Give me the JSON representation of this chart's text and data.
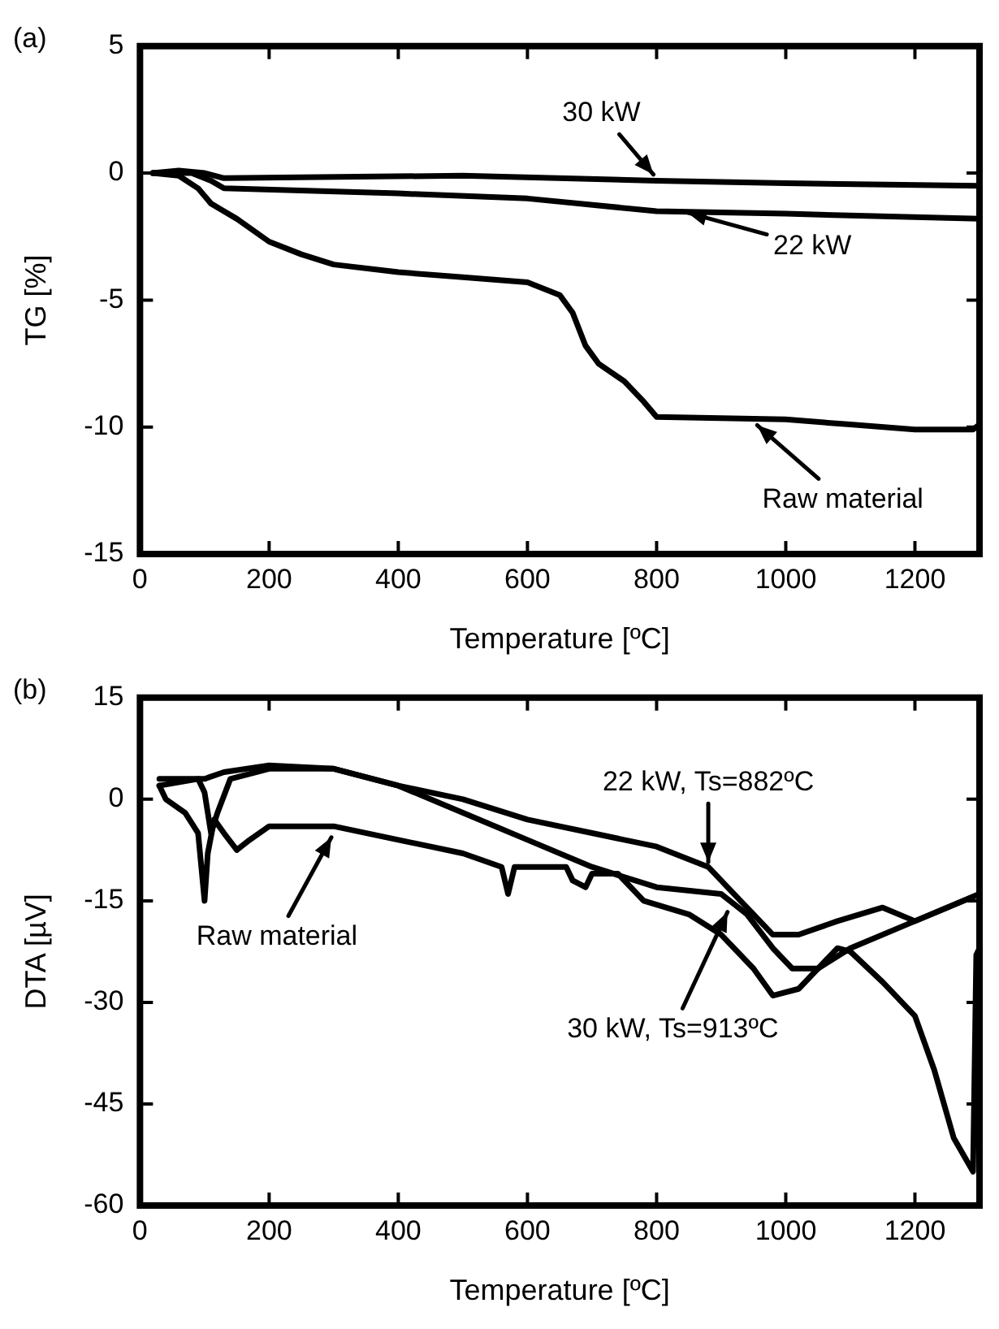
{
  "chart_data": [
    {
      "type": "line",
      "title": "(a)",
      "xlabel": "Temperature [ºC]",
      "ylabel": "TG [%]",
      "xlim": [
        0,
        1300
      ],
      "xticks": [
        0,
        200,
        400,
        600,
        800,
        1000,
        1200
      ],
      "ylim": [
        -15,
        5
      ],
      "yticks": [
        -15,
        -10,
        -5,
        0,
        5
      ],
      "grid": false,
      "legend": false,
      "marker": "none",
      "line_style": "solid",
      "series": [
        {
          "color": "#000000",
          "x": [
            20,
            60,
            100,
            130,
            500,
            800,
            1000,
            1300
          ],
          "values": [
            0,
            0.1,
            0,
            -0.2,
            -0.1,
            -0.3,
            -0.4,
            -0.5
          ]
        },
        {
          "color": "#000000",
          "x": [
            20,
            80,
            110,
            130,
            400,
            600,
            800,
            1000,
            1300
          ],
          "values": [
            0,
            0,
            -0.3,
            -0.6,
            -0.8,
            -1.0,
            -1.5,
            -1.6,
            -1.8
          ]
        },
        {
          "color": "#000000",
          "x": [
            20,
            60,
            90,
            110,
            150,
            200,
            250,
            300,
            400,
            500,
            600,
            650,
            670,
            690,
            710,
            750,
            780,
            800,
            1000,
            1100,
            1200,
            1290,
            1300
          ],
          "values": [
            0,
            -0.1,
            -0.6,
            -1.2,
            -1.8,
            -2.7,
            -3.2,
            -3.6,
            -3.9,
            -4.1,
            -4.3,
            -4.8,
            -5.5,
            -6.8,
            -7.5,
            -8.2,
            -9,
            -9.6,
            -9.7,
            -9.9,
            -10.1,
            -10.1,
            -9.9
          ]
        }
      ],
      "annotations": [
        {
          "text": "30 kW",
          "x": 800,
          "y": -0.2
        },
        {
          "text": "22 kW",
          "x": 840,
          "y": -1.5
        },
        {
          "text": "Raw material",
          "x": 950,
          "y": -9.8
        }
      ]
    },
    {
      "type": "line",
      "title": "(b)",
      "xlabel": "Temperature [ºC]",
      "ylabel": "DTA [µV]",
      "xlim": [
        0,
        1300
      ],
      "xticks": [
        0,
        200,
        400,
        600,
        800,
        1000,
        1200
      ],
      "ylim": [
        -60,
        15
      ],
      "yticks": [
        -60,
        -45,
        -30,
        -15,
        0,
        15
      ],
      "grid": false,
      "legend": false,
      "marker": "none",
      "line_style": "solid",
      "series": [
        {
          "color": "#000000",
          "x": [
            30,
            100,
            130,
            200,
            300,
            400,
            500,
            600,
            700,
            800,
            880,
            920,
            960,
            980,
            1020,
            1080,
            1150,
            1200,
            1250,
            1300
          ],
          "values": [
            3,
            3,
            4,
            5,
            4.5,
            2,
            0,
            -3,
            -5,
            -7,
            -10,
            -14,
            -18,
            -20,
            -20,
            -18,
            -16,
            -18,
            -16,
            -14
          ]
        },
        {
          "color": "#000000",
          "x": [
            30,
            90,
            100,
            110,
            120,
            140,
            200,
            300,
            400,
            500,
            600,
            700,
            800,
            900,
            940,
            980,
            1010,
            1050,
            1100,
            1200,
            1300
          ],
          "values": [
            2,
            3,
            1,
            -5,
            -2,
            3,
            4.5,
            4.5,
            2,
            -2,
            -6,
            -10,
            -13,
            -14,
            -17,
            -22,
            -25,
            -25,
            -22,
            -18,
            -14
          ]
        },
        {
          "color": "#000000",
          "x": [
            30,
            40,
            70,
            90,
            100,
            105,
            115,
            130,
            150,
            170,
            200,
            300,
            400,
            500,
            560,
            570,
            580,
            660,
            670,
            690,
            700,
            740,
            780,
            850,
            900,
            950,
            980,
            1020,
            1080,
            1100,
            1150,
            1200,
            1230,
            1260,
            1290,
            1295,
            1300
          ],
          "values": [
            2,
            0,
            -2,
            -5,
            -15,
            -8,
            -3,
            -5,
            -7.5,
            -6,
            -4,
            -4,
            -6,
            -8,
            -10,
            -14,
            -10,
            -10,
            -12,
            -13,
            -11,
            -11,
            -15,
            -17,
            -20,
            -25,
            -29,
            -28,
            -22,
            -22.5,
            -27,
            -32,
            -40,
            -50,
            -55,
            -23,
            -22
          ]
        }
      ],
      "annotations": [
        {
          "text": "22 kW, Ts=882ºC",
          "x": 880,
          "y": -10
        },
        {
          "text": "30 kW, Ts=913ºC",
          "x": 913,
          "y": -16
        },
        {
          "text": "Raw material",
          "x": 300,
          "y": -5
        }
      ]
    }
  ]
}
